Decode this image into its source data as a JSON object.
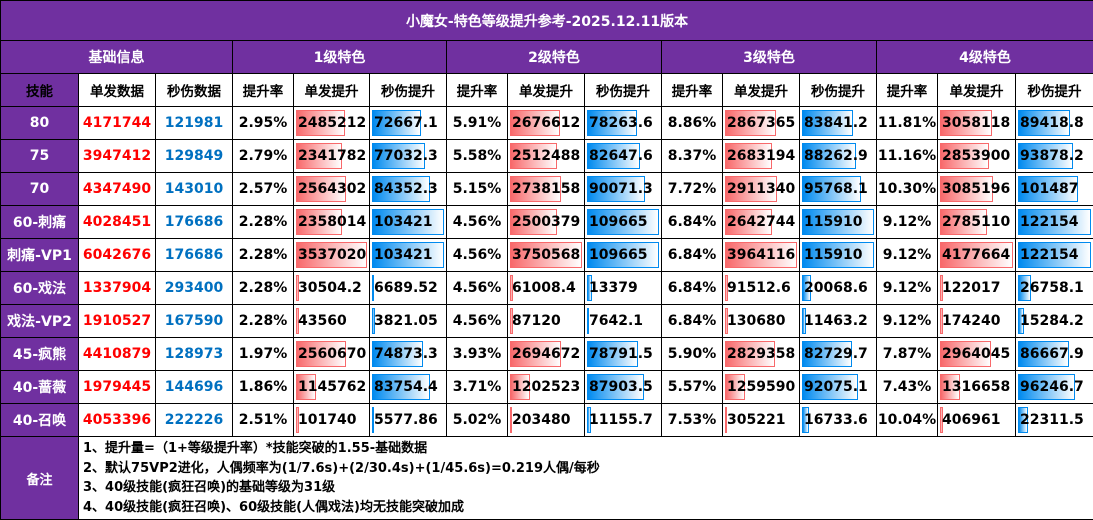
{
  "title": "小魔女-特色等级提升参考-2025.12.11版本",
  "group_headers": [
    "基础信息",
    "1级特色",
    "2级特色",
    "3级特色",
    "4级特色"
  ],
  "sub_headers": {
    "skill": "技能",
    "single": "单发数据",
    "dps": "秒伤数据",
    "rate": "提升率",
    "single_up": "单发提升",
    "dps_up": "秒伤提升"
  },
  "colors": {
    "header_bg": "#7030a0",
    "single_text": "#ff0000",
    "dps_text": "#0070c0",
    "single_bar": "#f8696b",
    "dps_bar": "#008aef"
  },
  "rows": [
    {
      "skill": "80",
      "single": "4171744",
      "dps": "121981",
      "levels": [
        [
          "2.95%",
          "2485212",
          "72667.1"
        ],
        [
          "5.91%",
          "2676612",
          "78263.6"
        ],
        [
          "8.86%",
          "2867365",
          "83841.2"
        ],
        [
          "11.81%",
          "3058118",
          "89418.8"
        ]
      ]
    },
    {
      "skill": "75",
      "single": "3947412",
      "dps": "129849",
      "levels": [
        [
          "2.79%",
          "2341782",
          "77032.3"
        ],
        [
          "5.58%",
          "2512488",
          "82647.6"
        ],
        [
          "8.37%",
          "2683194",
          "88262.9"
        ],
        [
          "11.16%",
          "2853900",
          "93878.2"
        ]
      ]
    },
    {
      "skill": "70",
      "single": "4347490",
      "dps": "143010",
      "levels": [
        [
          "2.57%",
          "2564302",
          "84352.3"
        ],
        [
          "5.15%",
          "2738158",
          "90071.3"
        ],
        [
          "7.72%",
          "2911340",
          "95768.1"
        ],
        [
          "10.30%",
          "3085196",
          "101487"
        ]
      ]
    },
    {
      "skill": "60-刺痛",
      "single": "4028451",
      "dps": "176686",
      "levels": [
        [
          "2.28%",
          "2358014",
          "103421"
        ],
        [
          "4.56%",
          "2500379",
          "109665"
        ],
        [
          "6.84%",
          "2642744",
          "115910"
        ],
        [
          "9.12%",
          "2785110",
          "122154"
        ]
      ]
    },
    {
      "skill": "刺痛-VP1",
      "single": "6042676",
      "dps": "176686",
      "levels": [
        [
          "2.28%",
          "3537020",
          "103421"
        ],
        [
          "4.56%",
          "3750568",
          "109665"
        ],
        [
          "6.84%",
          "3964116",
          "115910"
        ],
        [
          "9.12%",
          "4177664",
          "122154"
        ]
      ]
    },
    {
      "skill": "60-戏法",
      "single": "1337904",
      "dps": "293400",
      "levels": [
        [
          "2.28%",
          "30504.2",
          "6689.52"
        ],
        [
          "4.56%",
          "61008.4",
          "13379"
        ],
        [
          "6.84%",
          "91512.6",
          "20068.6"
        ],
        [
          "9.12%",
          "122017",
          "26758.1"
        ]
      ]
    },
    {
      "skill": "戏法-VP2",
      "single": "1910527",
      "dps": "167590",
      "levels": [
        [
          "2.28%",
          "43560",
          "3821.05"
        ],
        [
          "4.56%",
          "87120",
          "7642.1"
        ],
        [
          "6.84%",
          "130680",
          "11463.2"
        ],
        [
          "9.12%",
          "174240",
          "15284.2"
        ]
      ]
    },
    {
      "skill": "45-疯熊",
      "single": "4410879",
      "dps": "128973",
      "levels": [
        [
          "1.97%",
          "2560670",
          "74873.3"
        ],
        [
          "3.93%",
          "2694672",
          "78791.5"
        ],
        [
          "5.90%",
          "2829358",
          "82729.7"
        ],
        [
          "7.87%",
          "2964045",
          "86667.9"
        ]
      ]
    },
    {
      "skill": "40-蔷薇",
      "single": "1979445",
      "dps": "144696",
      "levels": [
        [
          "1.86%",
          "1145762",
          "83754.4"
        ],
        [
          "3.71%",
          "1202523",
          "87903.5"
        ],
        [
          "5.57%",
          "1259590",
          "92075.1"
        ],
        [
          "7.43%",
          "1316658",
          "96246.7"
        ]
      ]
    },
    {
      "skill": "40-召唤",
      "single": "4053396",
      "dps": "222226",
      "levels": [
        [
          "2.51%",
          "101740",
          "5577.86"
        ],
        [
          "5.02%",
          "203480",
          "11155.7"
        ],
        [
          "7.53%",
          "305221",
          "16733.6"
        ],
        [
          "10.04%",
          "406961",
          "22311.5"
        ]
      ]
    }
  ],
  "notes_label": "备注",
  "notes": [
    "1、提升量=（1+等级提升率）*技能突破的1.55-基础数据",
    "2、默认75VP2进化，人偶频率为(1/7.6s)+(2/30.4s)+(1/45.6s)=0.219人偶/每秒",
    "3、40级技能(疯狂召唤)的基础等级为31级",
    "4、40级技能(疯狂召唤)、60级技能(人偶戏法)均无技能突破加成"
  ]
}
